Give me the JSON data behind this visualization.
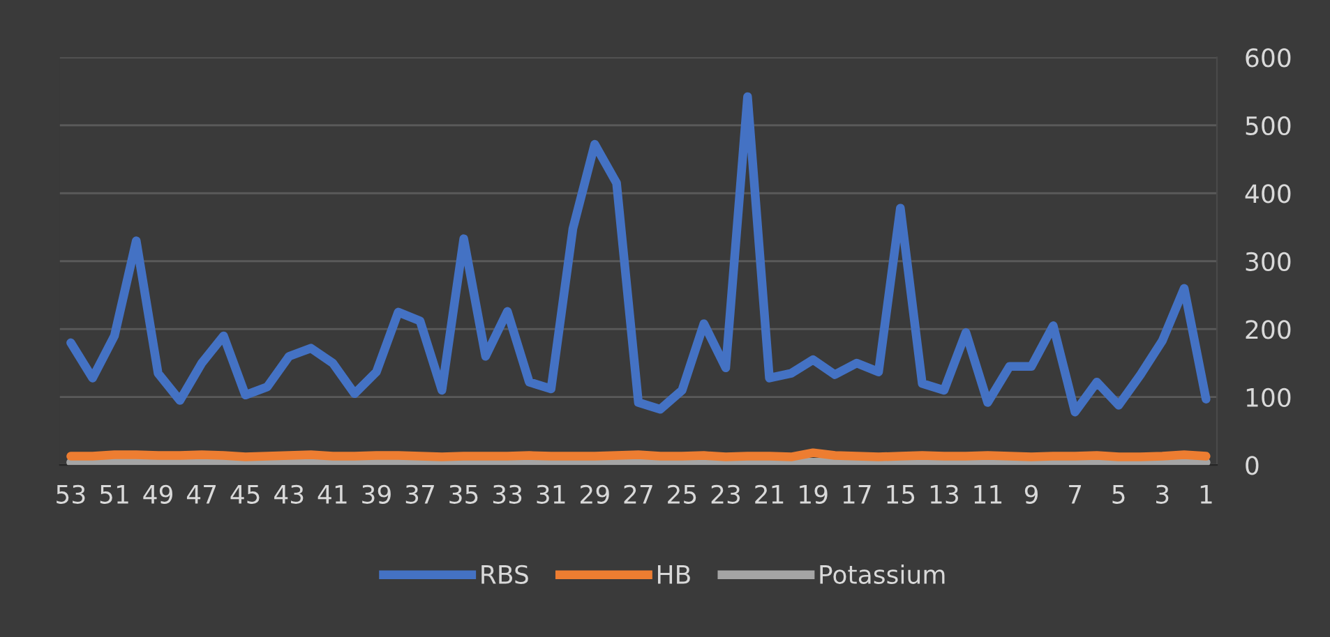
{
  "chart_data": {
    "type": "line",
    "categories": [
      "53",
      null,
      "51",
      null,
      "49",
      null,
      "47",
      null,
      "45",
      null,
      "43",
      null,
      "41",
      null,
      "39",
      null,
      "37",
      null,
      "35",
      null,
      "33",
      null,
      "31",
      null,
      "29",
      null,
      "27",
      null,
      "25",
      null,
      "23",
      null,
      "21",
      null,
      "19",
      null,
      "17",
      null,
      "15",
      null,
      "13",
      null,
      "11",
      null,
      "9",
      null,
      "7",
      null,
      "5",
      null,
      "3",
      null,
      "1"
    ],
    "series": [
      {
        "name": "RBS",
        "color": "#4472c4",
        "values": [
          180,
          128,
          190,
          330,
          135,
          95,
          150,
          190,
          103,
          115,
          160,
          172,
          150,
          105,
          137,
          225,
          212,
          110,
          333,
          160,
          226,
          122,
          112,
          348,
          472,
          415,
          92,
          82,
          110,
          208,
          143,
          542,
          128,
          135,
          155,
          133,
          150,
          137,
          378,
          120,
          110,
          195,
          92,
          145,
          145,
          205,
          78,
          122,
          88,
          133,
          183,
          260,
          97
        ]
      },
      {
        "name": "HB",
        "color": "#ed7d31",
        "values": [
          13,
          13,
          15,
          15,
          14,
          14,
          15,
          14,
          12,
          13,
          14,
          15,
          13,
          13,
          14,
          14,
          13,
          12,
          13,
          13,
          13,
          14,
          13,
          13,
          13,
          14,
          15,
          13,
          13,
          14,
          12,
          13,
          13,
          12,
          18,
          14,
          13,
          12,
          13,
          14,
          13,
          13,
          14,
          13,
          12,
          13,
          13,
          14,
          12,
          12,
          13,
          15,
          13
        ]
      },
      {
        "name": "Potassium",
        "color": "#a5a5a5",
        "values": [
          4,
          4,
          4,
          4,
          4,
          4,
          4,
          4,
          4,
          4,
          4,
          4,
          4,
          4,
          4,
          4,
          4,
          4,
          4,
          4,
          4,
          4,
          4,
          4,
          4,
          4,
          4,
          4,
          4,
          4,
          4,
          4,
          4,
          4,
          4,
          4,
          4,
          4,
          4,
          4,
          4,
          4,
          4,
          4,
          4,
          4,
          4,
          4,
          4,
          4,
          4,
          4,
          4
        ]
      }
    ],
    "ylim": [
      0,
      600
    ],
    "yticks": [
      0,
      100,
      200,
      300,
      400,
      500,
      600
    ],
    "grid": "y",
    "legend": "bottom",
    "marker": "none",
    "line_style": "solid"
  }
}
